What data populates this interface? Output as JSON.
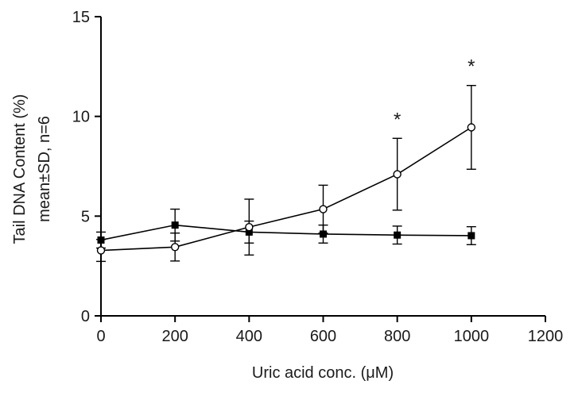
{
  "chart_data": {
    "type": "line",
    "xlabel": "Uric acid conc. (μM)",
    "ylabel": [
      "Tail DNA Content (%)",
      "mean±SD, n=6"
    ],
    "xlim": [
      0,
      1200
    ],
    "ylim": [
      0,
      15
    ],
    "x_ticks": [
      0,
      200,
      400,
      600,
      800,
      1000,
      1200
    ],
    "y_ticks": [
      0,
      5,
      10,
      15
    ],
    "x_tick_labels": [
      "0",
      "200",
      "400",
      "600",
      "800",
      "1000",
      "1200"
    ],
    "y_tick_labels": [
      "0",
      "5",
      "10",
      "15"
    ],
    "grid": false,
    "series": [
      {
        "marker": "filled-square",
        "color": "#000000",
        "x": [
          0,
          200,
          400,
          600,
          800,
          1000
        ],
        "y": [
          3.8,
          4.55,
          4.2,
          4.1,
          4.05,
          4.02
        ],
        "sd": [
          0.4,
          0.8,
          0.55,
          0.45,
          0.45,
          0.45
        ]
      },
      {
        "marker": "open-circle",
        "color": "#000000",
        "x": [
          0,
          200,
          400,
          600,
          800,
          1000
        ],
        "y": [
          3.28,
          3.45,
          4.45,
          5.35,
          7.1,
          9.45
        ],
        "sd": [
          0.55,
          0.7,
          1.4,
          1.2,
          1.8,
          2.1
        ]
      }
    ],
    "annotations": [
      {
        "text": "*",
        "x": 800
      },
      {
        "text": "*",
        "x": 1000
      }
    ]
  }
}
